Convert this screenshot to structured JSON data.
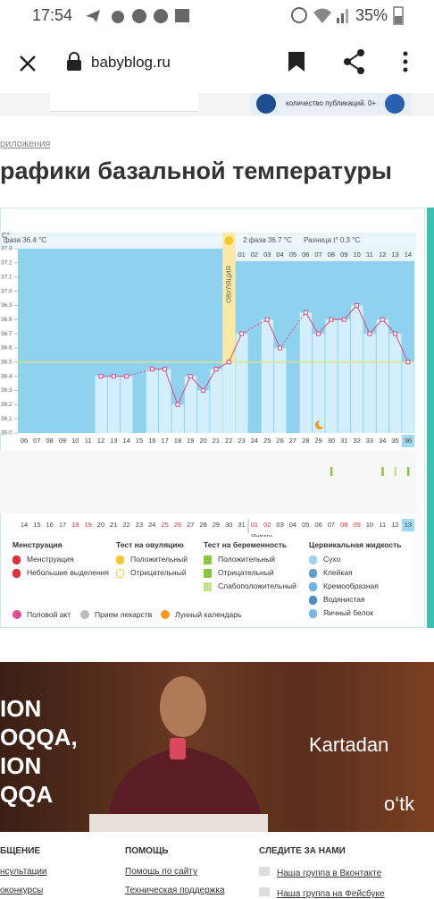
{
  "status_bar": {
    "time": "17:54",
    "battery": "35%"
  },
  "browser": {
    "url": "babyblog.ru"
  },
  "top_ad": {
    "text": "количество публикаций. 0+"
  },
  "article": {
    "breadcrumb": "риложения",
    "title": "рафики базальной температуры"
  },
  "chart_data": {
    "type": "line",
    "y_label": "С°",
    "phase1": "фаза 36.4 °С",
    "phase2": "2 фаза 36.7 °С",
    "difference": "Разница t° 0.3 °С",
    "ovulation_label": "ОВУЛЯЦИЯ",
    "categories": [
      "06",
      "07",
      "08",
      "09",
      "10",
      "11",
      "12",
      "13",
      "14",
      "15",
      "16",
      "17",
      "18",
      "19",
      "20",
      "21",
      "22",
      "23",
      "24",
      "25",
      "26",
      "27",
      "28",
      "29",
      "30",
      "31",
      "32",
      "33",
      "34",
      "35",
      "36"
    ],
    "values": [
      null,
      null,
      null,
      null,
      null,
      null,
      36.4,
      36.4,
      36.4,
      null,
      36.45,
      36.45,
      36.2,
      36.4,
      36.3,
      36.45,
      36.5,
      36.7,
      null,
      36.8,
      36.6,
      null,
      36.85,
      36.7,
      36.8,
      36.8,
      36.9,
      36.7,
      36.8,
      36.7,
      36.5
    ],
    "color": "#e2467c",
    "cover_line": 36.5,
    "phase2_days": [
      "01",
      "02",
      "03",
      "04",
      "05",
      "06",
      "07",
      "08",
      "09",
      "10",
      "11",
      "12",
      "13",
      "14"
    ],
    "dates": [
      "14",
      "15",
      "16",
      "17",
      "18",
      "19",
      "20",
      "21",
      "22",
      "23",
      "24",
      "25",
      "26",
      "27",
      "28",
      "29",
      "30",
      "31",
      "01",
      "02",
      "03",
      "04",
      "05",
      "06",
      "07",
      "08",
      "09",
      "10",
      "11",
      "12",
      "13"
    ],
    "weekend_dates": [
      "18",
      "19",
      "25",
      "26",
      "01",
      "02",
      "08",
      "09"
    ],
    "month_label": "Январь",
    "ylim": [
      36.0,
      37.3
    ],
    "yticks": [
      {
        "value": 36.0,
        "label": "36.0"
      },
      36.1,
      36.2,
      36.3,
      36.4,
      36.5,
      36.6,
      36.7,
      36.8,
      36.9,
      {
        "value": 37.0,
        "label": "37.0"
      },
      37.1,
      37.2,
      37.3
    ]
  },
  "legend": {
    "groups": [
      {
        "title": "Менструация",
        "items": [
          "Менструация",
          "Небольшие выделения"
        ]
      },
      {
        "title": "Тест на овуляцию",
        "items": [
          "Положительный",
          "Отрицательный"
        ]
      },
      {
        "title": "Тест на беременность",
        "items": [
          "Положительный",
          "Отрицательный",
          "Слабоположительный"
        ]
      },
      {
        "title": "Цервикальная жидкость",
        "items": [
          "Сухо",
          "Клейкая",
          "Кремообразная",
          "Водянистая",
          "Яичный белок"
        ]
      }
    ],
    "bottom": [
      "Половой акт",
      "Прием лекарств",
      "Лунный календарь"
    ]
  },
  "ad": {
    "left": [
      "ION",
      "OQQA,",
      "ION",
      "QQA"
    ],
    "right": [
      "Kartadan",
      "o‘tk"
    ]
  },
  "footer": {
    "columns": [
      {
        "title": "БЩЕНИЕ",
        "links": [
          "нсультации",
          "оконкурсы"
        ]
      },
      {
        "title": "ПОМОЩЬ",
        "links": [
          "Помощь по сайту",
          "Техническая поддержка"
        ]
      },
      {
        "title": "СЛЕДИТЕ ЗА НАМИ",
        "links": [
          "Наша группа в Вконтакте",
          "Наша группа на Фейсбуке"
        ]
      }
    ]
  }
}
